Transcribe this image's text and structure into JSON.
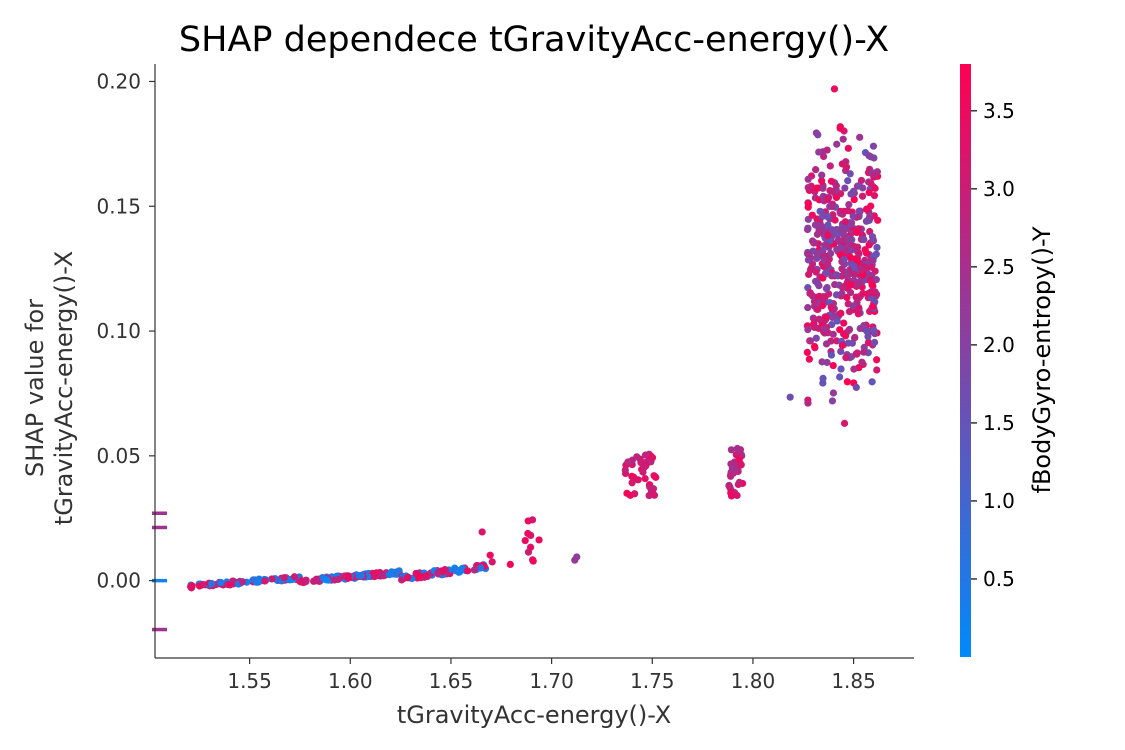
{
  "chart_data": {
    "type": "scatter",
    "title": "SHAP dependece tGravityAcc-energy()-X",
    "xlabel": "tGravityAcc-energy()-X",
    "ylabel_lines": [
      "SHAP value for",
      "tGravityAcc-energy()-X"
    ],
    "xlim": [
      1.503,
      1.88
    ],
    "ylim": [
      -0.031,
      0.207
    ],
    "xticks": [
      1.55,
      1.6,
      1.65,
      1.7,
      1.75,
      1.8,
      1.85
    ],
    "xtick_labels": [
      "1.55",
      "1.60",
      "1.65",
      "1.70",
      "1.75",
      "1.80",
      "1.85"
    ],
    "yticks": [
      0.0,
      0.05,
      0.1,
      0.15,
      0.2
    ],
    "ytick_labels": [
      "0.00",
      "0.05",
      "0.10",
      "0.15",
      "0.20"
    ],
    "grid": false,
    "colorbar": {
      "label": "fBodyGyro-entropy()-Y",
      "range": [
        0.0,
        3.8
      ],
      "ticks": [
        0.5,
        1.0,
        1.5,
        2.0,
        2.5,
        3.0,
        3.5
      ],
      "tick_labels": [
        "0.5",
        "1.0",
        "1.5",
        "2.0",
        "2.5",
        "3.0",
        "3.5"
      ],
      "color_low": "#008afb",
      "color_high": "#ff0052"
    },
    "nan_points": [
      {
        "y": 0.027,
        "c": 2.4
      },
      {
        "y": 0.0213,
        "c": 2.4
      },
      {
        "y": 0.0,
        "c": 0.2
      },
      {
        "y": -0.0196,
        "c": 2.4
      }
    ],
    "clusters": [
      {
        "x": [
          1.52,
          1.575
        ],
        "y": [
          -0.003,
          0.002
        ],
        "n": 90,
        "c": [
          0.1,
          3.6
        ]
      },
      {
        "x": [
          1.575,
          1.625
        ],
        "y": [
          -0.001,
          0.004
        ],
        "n": 120,
        "c": [
          0.1,
          3.7
        ]
      },
      {
        "x": [
          1.625,
          1.668
        ],
        "y": [
          0.0,
          0.007
        ],
        "n": 70,
        "c": [
          0.1,
          3.6
        ]
      },
      {
        "x": [
          1.686,
          1.694
        ],
        "y": [
          0.007,
          0.029
        ],
        "n": 10,
        "c": [
          3.0,
          3.6
        ]
      },
      {
        "x": [
          1.736,
          1.753
        ],
        "y": [
          0.034,
          0.052
        ],
        "n": 40,
        "c": [
          2.6,
          3.7
        ]
      },
      {
        "x": [
          1.788,
          1.795
        ],
        "y": [
          0.033,
          0.053
        ],
        "n": 35,
        "c": [
          2.3,
          3.6
        ]
      },
      {
        "x": [
          1.827,
          1.862
        ],
        "y": [
          0.06,
          0.197
        ],
        "n": 520,
        "c": [
          1.4,
          3.8
        ]
      }
    ],
    "points": [
      {
        "x": 1.6655,
        "y": 0.0195,
        "c": 3.3
      },
      {
        "x": 1.6695,
        "y": 0.0102,
        "c": 3.5
      },
      {
        "x": 1.6705,
        "y": 0.0075,
        "c": 3.2
      },
      {
        "x": 1.6795,
        "y": 0.0065,
        "c": 3.6
      },
      {
        "x": 1.7125,
        "y": 0.0095,
        "c": 2.1
      },
      {
        "x": 1.7115,
        "y": 0.0082,
        "c": 2.2
      },
      {
        "x": 1.8185,
        "y": 0.0735,
        "c": 1.7
      },
      {
        "x": 1.8365,
        "y": 0.117,
        "c": 1.9
      },
      {
        "x": 1.8395,
        "y": 0.072,
        "c": 2.0
      },
      {
        "x": 1.8455,
        "y": 0.063,
        "c": 3.2
      },
      {
        "x": 1.8405,
        "y": 0.197,
        "c": 3.5
      }
    ]
  }
}
